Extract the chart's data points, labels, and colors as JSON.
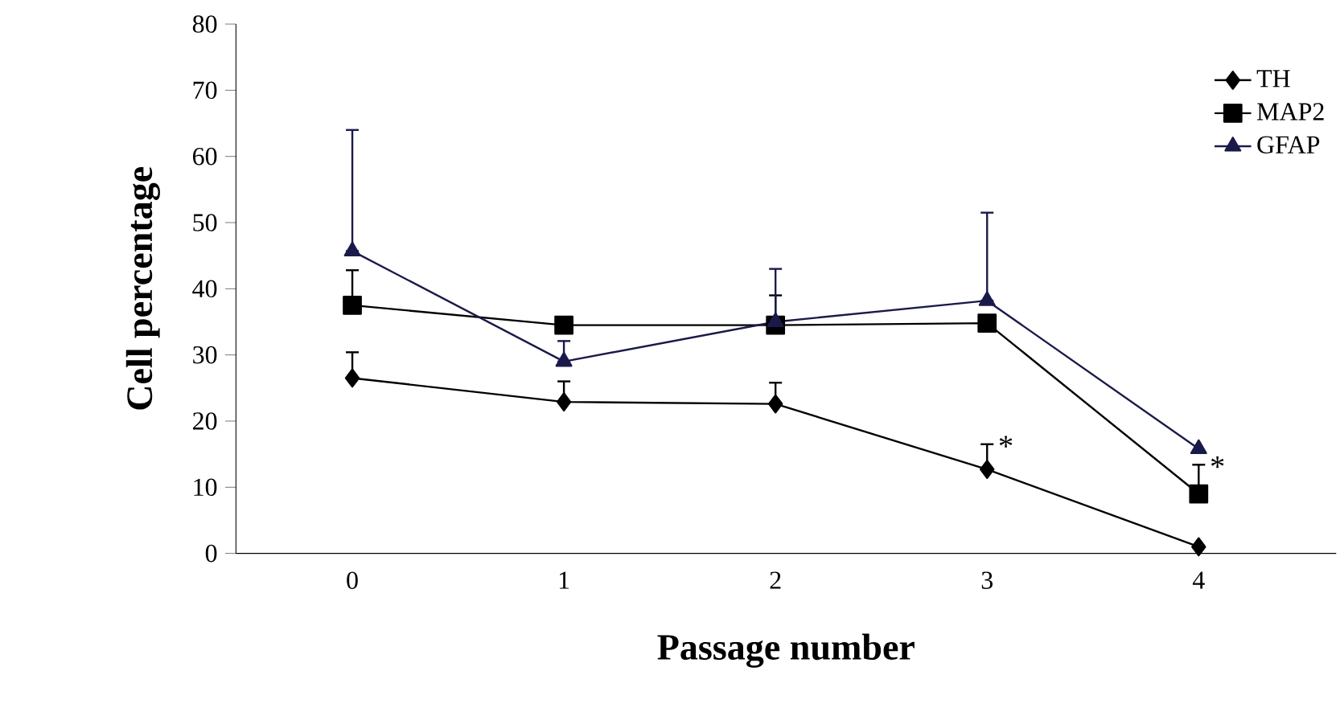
{
  "chart_data": {
    "type": "line",
    "xlabel": "Passage number",
    "ylabel": "Cell percentage",
    "categories": [
      "0",
      "1",
      "2",
      "3",
      "4"
    ],
    "series": [
      {
        "name": "TH",
        "color": "#000000",
        "marker": "diamond",
        "values": [
          26.5,
          22.9,
          22.6,
          12.7,
          1
        ],
        "errors": [
          [
            26.5,
            30.4
          ],
          [
            22.9,
            26
          ],
          [
            22.6,
            25.8
          ],
          [
            12.7,
            16.5
          ],
          null
        ]
      },
      {
        "name": "MAP2",
        "color": "#000000",
        "marker": "square",
        "values": [
          37.5,
          34.5,
          34.5,
          34.8,
          9
        ],
        "errors": [
          [
            37.5,
            42.8
          ],
          null,
          [
            34.5,
            39
          ],
          null,
          [
            9,
            13.4
          ]
        ]
      },
      {
        "name": "GFAP",
        "color": "#1a1a4a",
        "marker": "triangle",
        "values": [
          45.7,
          29,
          35,
          38.2,
          15.8
        ],
        "errors": [
          [
            45.7,
            64
          ],
          [
            29,
            32.1
          ],
          [
            35,
            43
          ],
          [
            38.2,
            51.5
          ],
          null
        ]
      }
    ],
    "ylim": [
      0,
      80
    ],
    "yticks": [
      0,
      10,
      20,
      30,
      40,
      50,
      60,
      70,
      80
    ],
    "legend": "top right",
    "grid": false,
    "annotations": [
      {
        "text": "*",
        "x": "3",
        "y": 16.5
      },
      {
        "text": "*",
        "x": "4",
        "y": 13.4
      }
    ]
  }
}
